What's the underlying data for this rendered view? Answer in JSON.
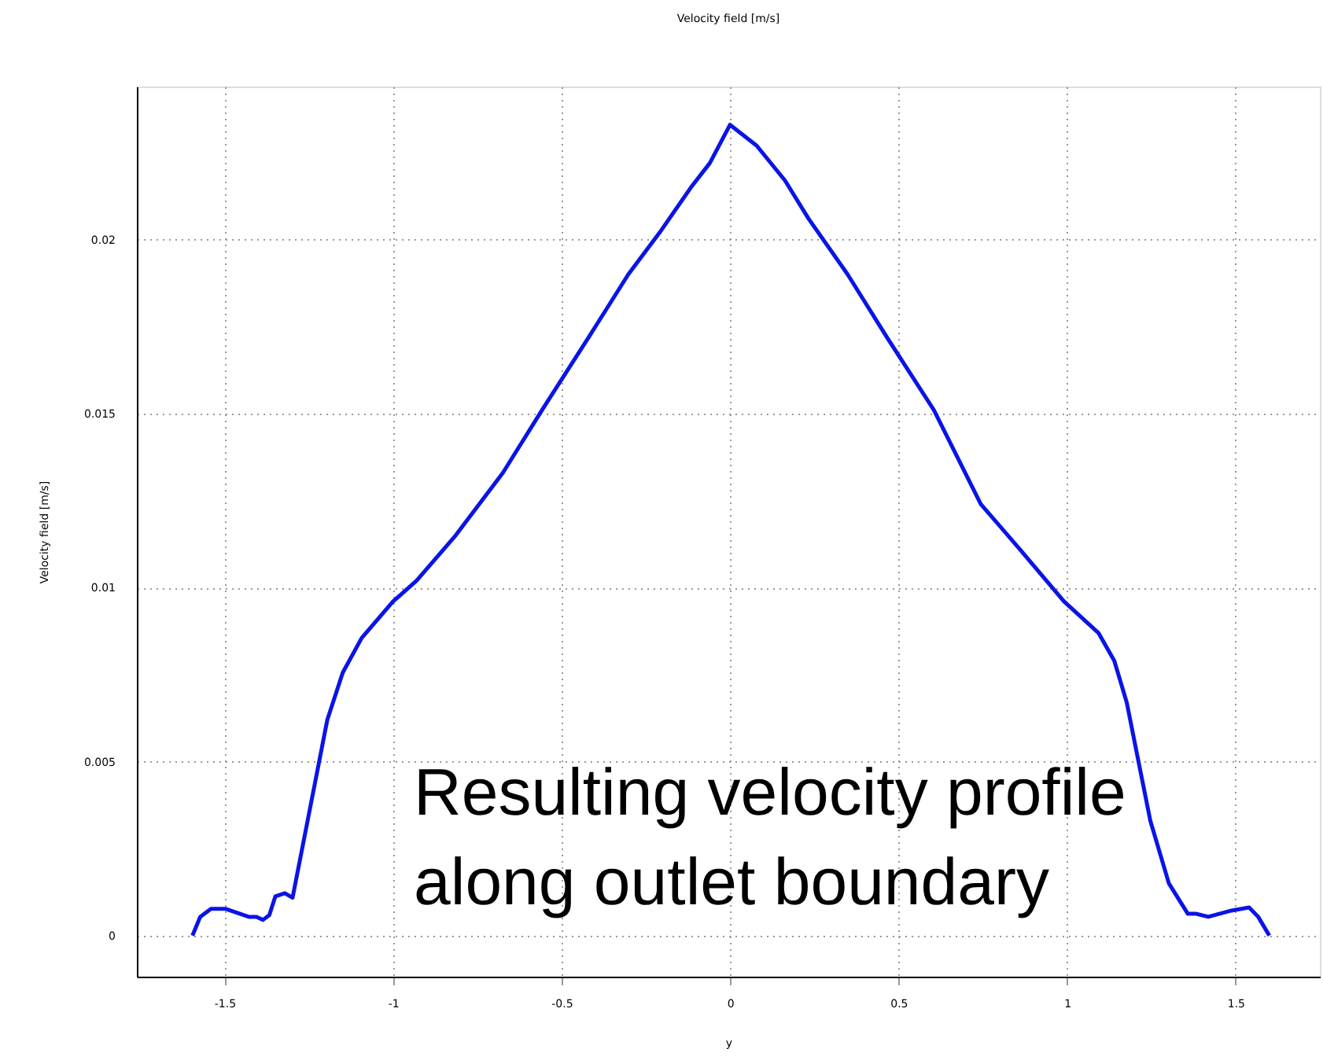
{
  "chart_data": {
    "type": "line",
    "title": "Velocity field [m/s]",
    "xlabel": "y",
    "ylabel": "Velocity field [m/s]",
    "x": [
      -1.595,
      -1.572,
      -1.54,
      -1.498,
      -1.428,
      -1.405,
      -1.386,
      -1.367,
      -1.349,
      -1.321,
      -1.298,
      -1.256,
      -1.195,
      -1.149,
      -1.093,
      -1.0,
      -0.93,
      -0.814,
      -0.674,
      -0.558,
      -0.419,
      -0.302,
      -0.209,
      -0.116,
      -0.06,
      0.0,
      0.079,
      0.163,
      0.233,
      0.349,
      0.465,
      0.605,
      0.744,
      0.86,
      0.991,
      1.093,
      1.14,
      1.177,
      1.214,
      1.247,
      1.302,
      1.358,
      1.381,
      1.419,
      1.488,
      1.54,
      1.567,
      1.6
    ],
    "series": [
      {
        "color": "#0a14e6",
        "values": [
          0,
          0.00054,
          0.00077,
          0.00077,
          0.00054,
          0.00054,
          0.00045,
          0.00059,
          0.00113,
          0.00122,
          0.00109,
          0.00317,
          0.0062,
          0.00756,
          0.00855,
          0.0096,
          0.0102,
          0.0115,
          0.0133,
          0.0151,
          0.0172,
          0.019,
          0.0202,
          0.0215,
          0.0222,
          0.0233,
          0.0227,
          0.0217,
          0.0206,
          0.019,
          0.0172,
          0.0151,
          0.0124,
          0.0111,
          0.0096,
          0.0087,
          0.0079,
          0.0067,
          0.0049,
          0.0033,
          0.0015,
          0.00063,
          0.00063,
          0.00054,
          0.00072,
          0.00081,
          0.00054,
          0
        ]
      }
    ],
    "xlim": [
      -1.76,
      1.75
    ],
    "ylim": [
      -0.00118,
      0.0244
    ],
    "xticks": [
      -1.5,
      -1,
      -0.5,
      0,
      0.5,
      1,
      1.5
    ],
    "yticks": [
      0,
      0.005,
      0.01,
      0.015,
      0.02
    ],
    "grid": true,
    "marker": "none",
    "line_style": "solid",
    "annotations": [
      "Resulting velocity profile\nalong outlet boundary"
    ]
  }
}
